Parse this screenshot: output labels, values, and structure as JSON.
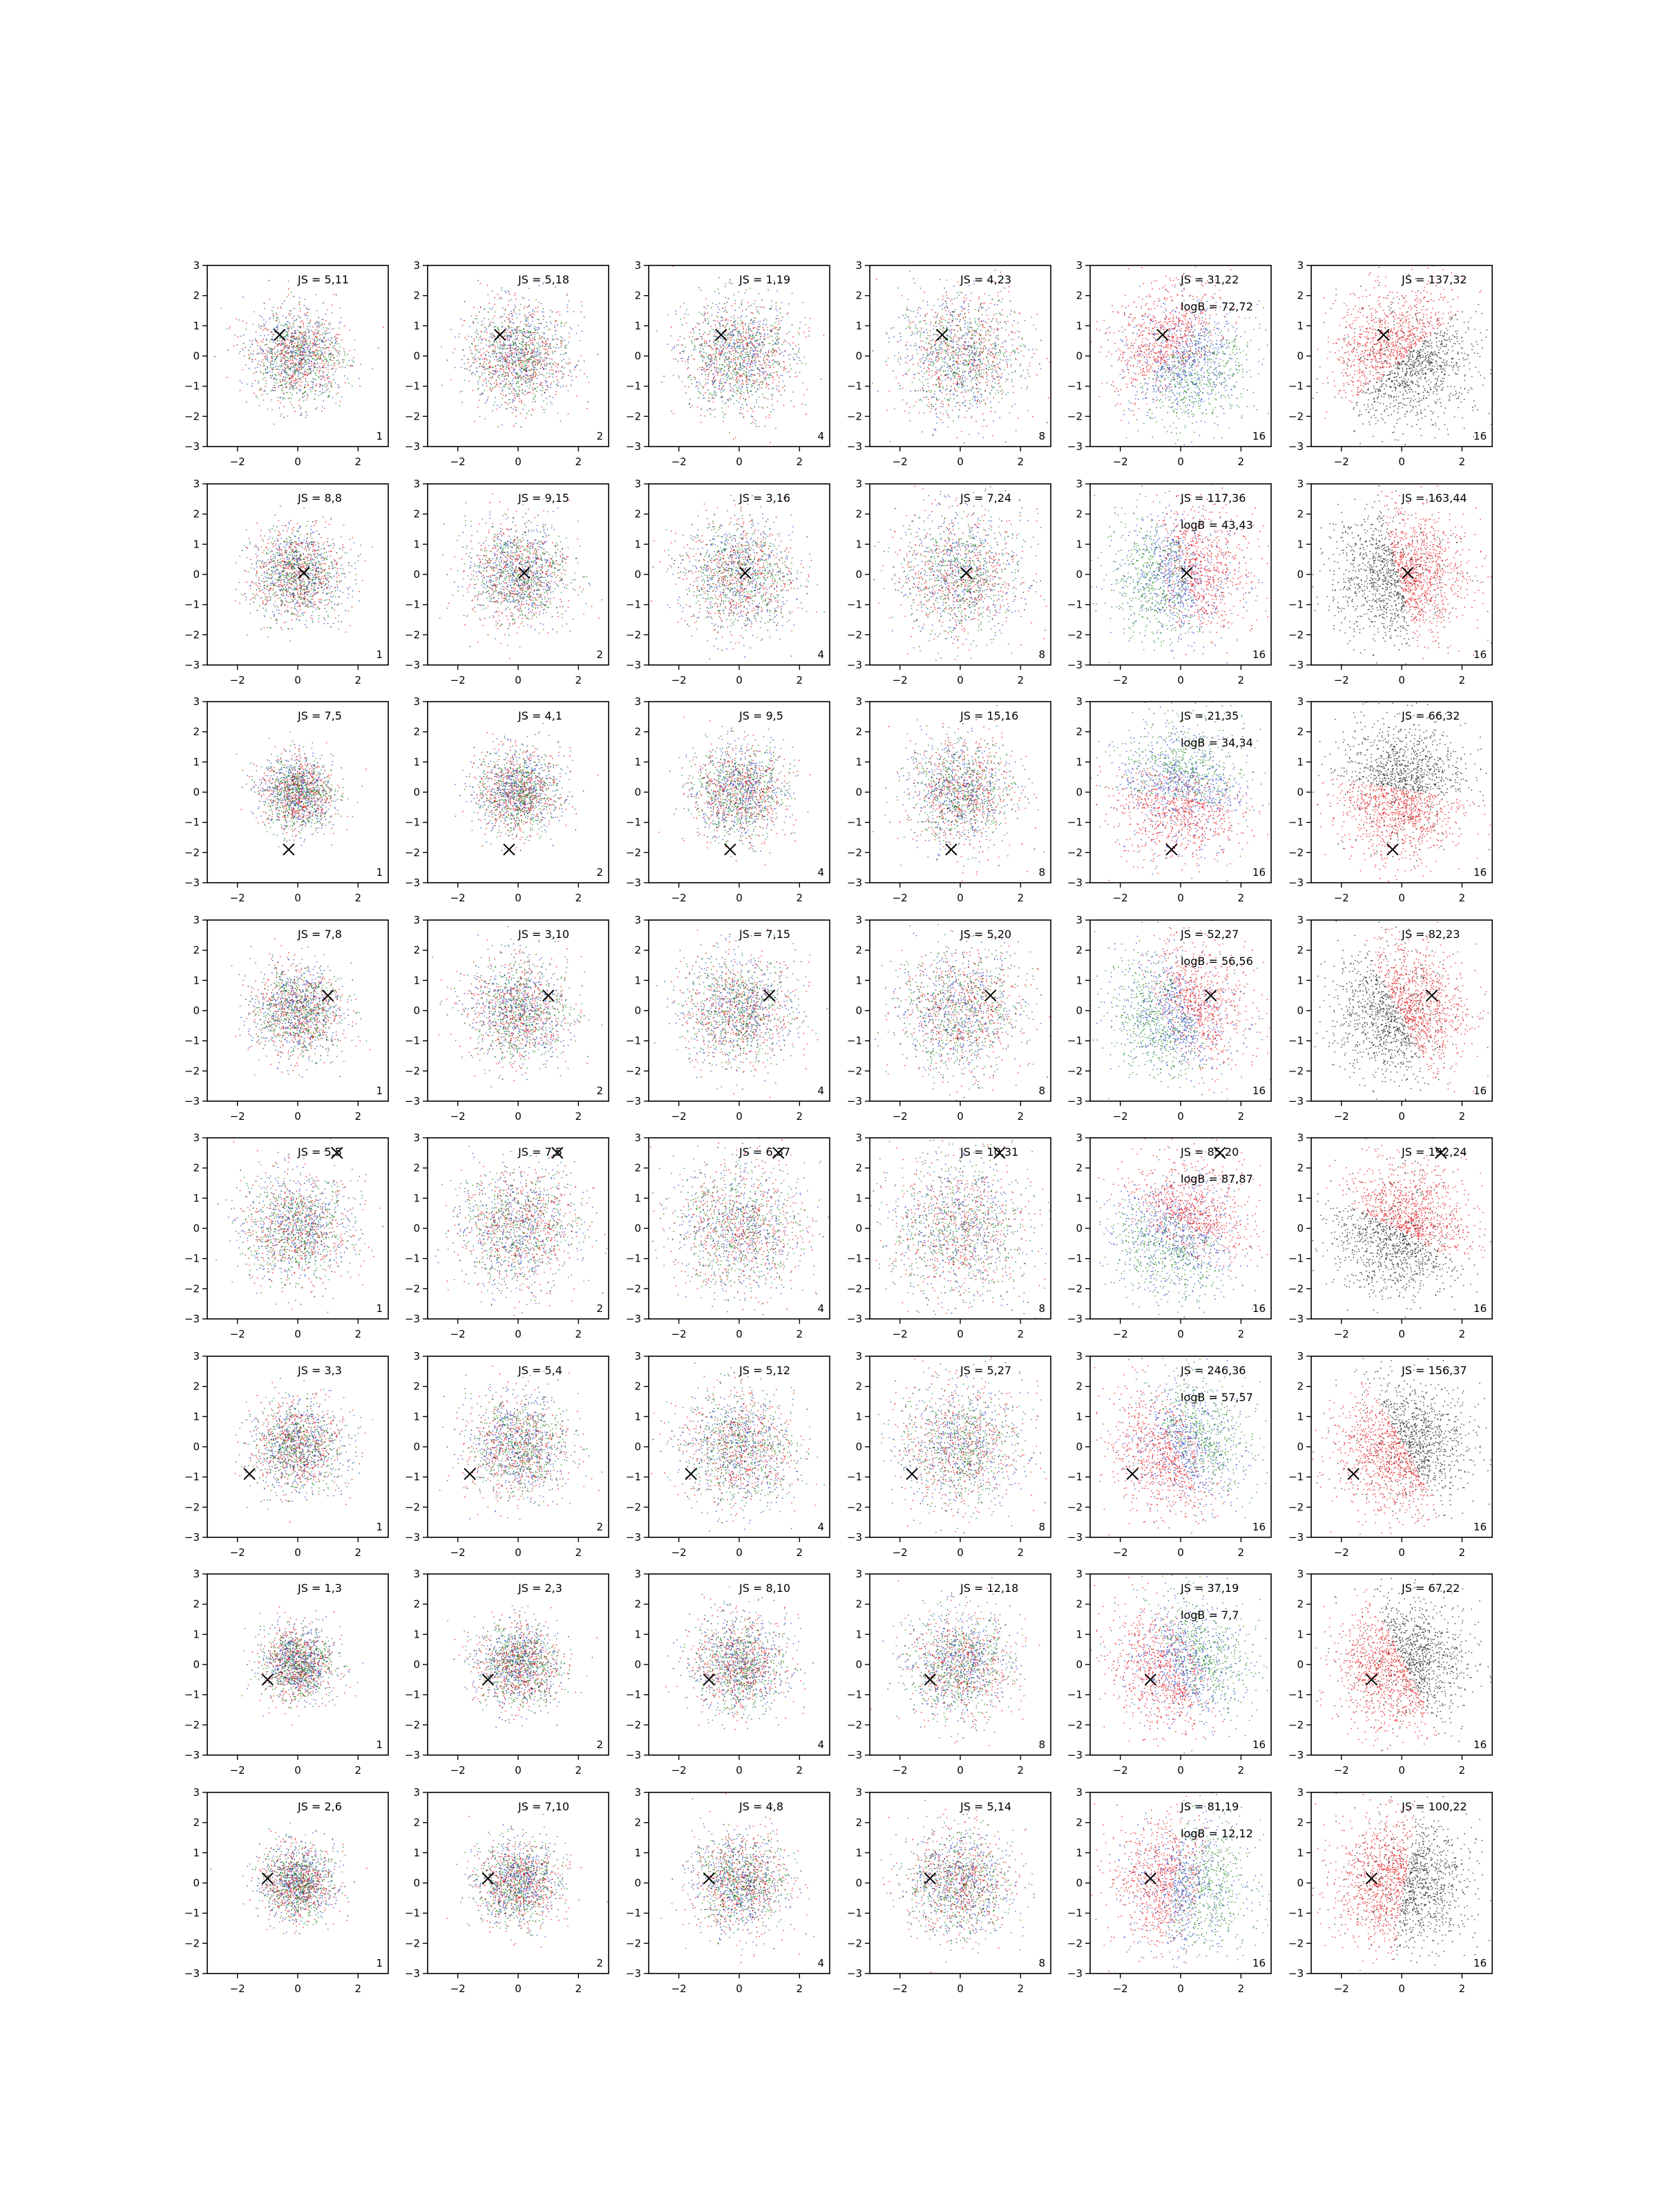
{
  "figure": {
    "rows": 8,
    "cols": 6,
    "subplot_type": "scatter",
    "xlim": [
      -3,
      3
    ],
    "ylim": [
      -3,
      3
    ],
    "x_ticks": [
      "−2",
      "0",
      "2"
    ],
    "y_ticks": [
      "3",
      "2",
      "1",
      "0",
      "−1",
      "−2",
      "−3"
    ],
    "column_corner_labels": [
      "1",
      "2",
      "4",
      "8",
      "16",
      "16"
    ],
    "colors": {
      "red": "#e8141a",
      "green": "#1c8a1c",
      "blue": "#2b45c8",
      "black": "#222222",
      "axis": "#000000",
      "marker": "#000000"
    }
  },
  "chart_data": [
    {
      "row": 1,
      "col": 1,
      "type": "scatter",
      "annotation_js": "JS = 5,11",
      "annotation_logb": "",
      "corner_label": "1",
      "marker": {
        "x": -0.6,
        "y": 0.7
      },
      "style": "mixed"
    },
    {
      "row": 1,
      "col": 2,
      "type": "scatter",
      "annotation_js": "JS = 5,18",
      "annotation_logb": "",
      "corner_label": "2",
      "marker": {
        "x": -0.6,
        "y": 0.7
      },
      "style": "mixed"
    },
    {
      "row": 1,
      "col": 3,
      "type": "scatter",
      "annotation_js": "JS = 1,19",
      "annotation_logb": "",
      "corner_label": "4",
      "marker": {
        "x": -0.6,
        "y": 0.7
      },
      "style": "mixed"
    },
    {
      "row": 1,
      "col": 4,
      "type": "scatter",
      "annotation_js": "JS = 4,23",
      "annotation_logb": "",
      "corner_label": "8",
      "marker": {
        "x": -0.6,
        "y": 0.7
      },
      "style": "mixed"
    },
    {
      "row": 1,
      "col": 5,
      "type": "scatter",
      "annotation_js": "JS = 31,22",
      "annotation_logb": "logB = 72,72",
      "corner_label": "16",
      "marker": {
        "x": -0.6,
        "y": 0.7
      },
      "style": "split"
    },
    {
      "row": 1,
      "col": 6,
      "type": "scatter",
      "annotation_js": "JS = 137,32",
      "annotation_logb": "",
      "corner_label": "16",
      "marker": {
        "x": -0.6,
        "y": 0.7
      },
      "style": "binary"
    },
    {
      "row": 2,
      "col": 1,
      "type": "scatter",
      "annotation_js": "JS = 8,8",
      "annotation_logb": "",
      "corner_label": "1",
      "marker": {
        "x": 0.2,
        "y": 0.05
      },
      "style": "mixed"
    },
    {
      "row": 2,
      "col": 2,
      "type": "scatter",
      "annotation_js": "JS = 9,15",
      "annotation_logb": "",
      "corner_label": "2",
      "marker": {
        "x": 0.2,
        "y": 0.05
      },
      "style": "mixed"
    },
    {
      "row": 2,
      "col": 3,
      "type": "scatter",
      "annotation_js": "JS = 3,16",
      "annotation_logb": "",
      "corner_label": "4",
      "marker": {
        "x": 0.2,
        "y": 0.05
      },
      "style": "mixed"
    },
    {
      "row": 2,
      "col": 4,
      "type": "scatter",
      "annotation_js": "JS = 7,24",
      "annotation_logb": "",
      "corner_label": "8",
      "marker": {
        "x": 0.2,
        "y": 0.05
      },
      "style": "mixed"
    },
    {
      "row": 2,
      "col": 5,
      "type": "scatter",
      "annotation_js": "JS = 117,36",
      "annotation_logb": "logB = 43,43",
      "corner_label": "16",
      "marker": {
        "x": 0.2,
        "y": 0.05
      },
      "style": "split"
    },
    {
      "row": 2,
      "col": 6,
      "type": "scatter",
      "annotation_js": "JS = 163,44",
      "annotation_logb": "",
      "corner_label": "16",
      "marker": {
        "x": 0.2,
        "y": 0.05
      },
      "style": "binary"
    },
    {
      "row": 3,
      "col": 1,
      "type": "scatter",
      "annotation_js": "JS = 7,5",
      "annotation_logb": "",
      "corner_label": "1",
      "marker": {
        "x": -0.3,
        "y": -1.9
      },
      "style": "mixed"
    },
    {
      "row": 3,
      "col": 2,
      "type": "scatter",
      "annotation_js": "JS = 4,1",
      "annotation_logb": "",
      "corner_label": "2",
      "marker": {
        "x": -0.3,
        "y": -1.9
      },
      "style": "mixed"
    },
    {
      "row": 3,
      "col": 3,
      "type": "scatter",
      "annotation_js": "JS = 9,5",
      "annotation_logb": "",
      "corner_label": "4",
      "marker": {
        "x": -0.3,
        "y": -1.9
      },
      "style": "mixed"
    },
    {
      "row": 3,
      "col": 4,
      "type": "scatter",
      "annotation_js": "JS = 15,16",
      "annotation_logb": "",
      "corner_label": "8",
      "marker": {
        "x": -0.3,
        "y": -1.9
      },
      "style": "mixed"
    },
    {
      "row": 3,
      "col": 5,
      "type": "scatter",
      "annotation_js": "JS = 21,35",
      "annotation_logb": "logB = 34,34",
      "corner_label": "16",
      "marker": {
        "x": -0.3,
        "y": -1.9
      },
      "style": "split"
    },
    {
      "row": 3,
      "col": 6,
      "type": "scatter",
      "annotation_js": "JS = 66,32",
      "annotation_logb": "",
      "corner_label": "16",
      "marker": {
        "x": -0.3,
        "y": -1.9
      },
      "style": "binary"
    },
    {
      "row": 4,
      "col": 1,
      "type": "scatter",
      "annotation_js": "JS = 7,8",
      "annotation_logb": "",
      "corner_label": "1",
      "marker": {
        "x": 1.0,
        "y": 0.5
      },
      "style": "mixed"
    },
    {
      "row": 4,
      "col": 2,
      "type": "scatter",
      "annotation_js": "JS = 3,10",
      "annotation_logb": "",
      "corner_label": "2",
      "marker": {
        "x": 1.0,
        "y": 0.5
      },
      "style": "mixed"
    },
    {
      "row": 4,
      "col": 3,
      "type": "scatter",
      "annotation_js": "JS = 7,15",
      "annotation_logb": "",
      "corner_label": "4",
      "marker": {
        "x": 1.0,
        "y": 0.5
      },
      "style": "mixed"
    },
    {
      "row": 4,
      "col": 4,
      "type": "scatter",
      "annotation_js": "JS = 5,20",
      "annotation_logb": "",
      "corner_label": "8",
      "marker": {
        "x": 1.0,
        "y": 0.5
      },
      "style": "mixed"
    },
    {
      "row": 4,
      "col": 5,
      "type": "scatter",
      "annotation_js": "JS = 52,27",
      "annotation_logb": "logB = 56,56",
      "corner_label": "16",
      "marker": {
        "x": 1.0,
        "y": 0.5
      },
      "style": "split"
    },
    {
      "row": 4,
      "col": 6,
      "type": "scatter",
      "annotation_js": "JS = 82,23",
      "annotation_logb": "",
      "corner_label": "16",
      "marker": {
        "x": 1.0,
        "y": 0.5
      },
      "style": "binary"
    },
    {
      "row": 5,
      "col": 1,
      "type": "scatter",
      "annotation_js": "JS = 5,5",
      "annotation_logb": "",
      "corner_label": "1",
      "marker": {
        "x": 1.3,
        "y": 2.5
      },
      "style": "mixed"
    },
    {
      "row": 5,
      "col": 2,
      "type": "scatter",
      "annotation_js": "JS = 7,5",
      "annotation_logb": "",
      "corner_label": "2",
      "marker": {
        "x": 1.3,
        "y": 2.5
      },
      "style": "mixed"
    },
    {
      "row": 5,
      "col": 3,
      "type": "scatter",
      "annotation_js": "JS = 6,37",
      "annotation_logb": "",
      "corner_label": "4",
      "marker": {
        "x": 1.3,
        "y": 2.5
      },
      "style": "mixed"
    },
    {
      "row": 5,
      "col": 4,
      "type": "scatter",
      "annotation_js": "JS = 10,31",
      "annotation_logb": "",
      "corner_label": "8",
      "marker": {
        "x": 1.3,
        "y": 2.5
      },
      "style": "mixed"
    },
    {
      "row": 5,
      "col": 5,
      "type": "scatter",
      "annotation_js": "JS = 85,20",
      "annotation_logb": "logB = 87,87",
      "corner_label": "16",
      "marker": {
        "x": 1.3,
        "y": 2.5
      },
      "style": "split"
    },
    {
      "row": 5,
      "col": 6,
      "type": "scatter",
      "annotation_js": "JS = 192,24",
      "annotation_logb": "",
      "corner_label": "16",
      "marker": {
        "x": 1.3,
        "y": 2.5
      },
      "style": "binary"
    },
    {
      "row": 6,
      "col": 1,
      "type": "scatter",
      "annotation_js": "JS = 3,3",
      "annotation_logb": "",
      "corner_label": "1",
      "marker": {
        "x": -1.6,
        "y": -0.9
      },
      "style": "mixed"
    },
    {
      "row": 6,
      "col": 2,
      "type": "scatter",
      "annotation_js": "JS = 5,4",
      "annotation_logb": "",
      "corner_label": "2",
      "marker": {
        "x": -1.6,
        "y": -0.9
      },
      "style": "mixed"
    },
    {
      "row": 6,
      "col": 3,
      "type": "scatter",
      "annotation_js": "JS = 5,12",
      "annotation_logb": "",
      "corner_label": "4",
      "marker": {
        "x": -1.6,
        "y": -0.9
      },
      "style": "mixed"
    },
    {
      "row": 6,
      "col": 4,
      "type": "scatter",
      "annotation_js": "JS = 5,27",
      "annotation_logb": "",
      "corner_label": "8",
      "marker": {
        "x": -1.6,
        "y": -0.9
      },
      "style": "mixed"
    },
    {
      "row": 6,
      "col": 5,
      "type": "scatter",
      "annotation_js": "JS = 246,36",
      "annotation_logb": "logB = 57,57",
      "corner_label": "16",
      "marker": {
        "x": -1.6,
        "y": -0.9
      },
      "style": "split"
    },
    {
      "row": 6,
      "col": 6,
      "type": "scatter",
      "annotation_js": "JS = 156,37",
      "annotation_logb": "",
      "corner_label": "16",
      "marker": {
        "x": -1.6,
        "y": -0.9
      },
      "style": "binary"
    },
    {
      "row": 7,
      "col": 1,
      "type": "scatter",
      "annotation_js": "JS = 1,3",
      "annotation_logb": "",
      "corner_label": "1",
      "marker": {
        "x": -1.0,
        "y": -0.5
      },
      "style": "mixed"
    },
    {
      "row": 7,
      "col": 2,
      "type": "scatter",
      "annotation_js": "JS = 2,3",
      "annotation_logb": "",
      "corner_label": "2",
      "marker": {
        "x": -1.0,
        "y": -0.5
      },
      "style": "mixed"
    },
    {
      "row": 7,
      "col": 3,
      "type": "scatter",
      "annotation_js": "JS = 8,10",
      "annotation_logb": "",
      "corner_label": "4",
      "marker": {
        "x": -1.0,
        "y": -0.5
      },
      "style": "mixed"
    },
    {
      "row": 7,
      "col": 4,
      "type": "scatter",
      "annotation_js": "JS = 12,18",
      "annotation_logb": "",
      "corner_label": "8",
      "marker": {
        "x": -1.0,
        "y": -0.5
      },
      "style": "mixed"
    },
    {
      "row": 7,
      "col": 5,
      "type": "scatter",
      "annotation_js": "JS = 37,19",
      "annotation_logb": "logB = 7,7",
      "corner_label": "16",
      "marker": {
        "x": -1.0,
        "y": -0.5
      },
      "style": "split"
    },
    {
      "row": 7,
      "col": 6,
      "type": "scatter",
      "annotation_js": "JS = 67,22",
      "annotation_logb": "",
      "corner_label": "16",
      "marker": {
        "x": -1.0,
        "y": -0.5
      },
      "style": "binary"
    },
    {
      "row": 8,
      "col": 1,
      "type": "scatter",
      "annotation_js": "JS = 2,6",
      "annotation_logb": "",
      "corner_label": "1",
      "marker": {
        "x": -1.0,
        "y": 0.15
      },
      "style": "mixed"
    },
    {
      "row": 8,
      "col": 2,
      "type": "scatter",
      "annotation_js": "JS = 7,10",
      "annotation_logb": "",
      "corner_label": "2",
      "marker": {
        "x": -1.0,
        "y": 0.15
      },
      "style": "mixed"
    },
    {
      "row": 8,
      "col": 3,
      "type": "scatter",
      "annotation_js": "JS = 4,8",
      "annotation_logb": "",
      "corner_label": "4",
      "marker": {
        "x": -1.0,
        "y": 0.15
      },
      "style": "mixed"
    },
    {
      "row": 8,
      "col": 4,
      "type": "scatter",
      "annotation_js": "JS = 5,14",
      "annotation_logb": "",
      "corner_label": "8",
      "marker": {
        "x": -1.0,
        "y": 0.15
      },
      "style": "mixed"
    },
    {
      "row": 8,
      "col": 5,
      "type": "scatter",
      "annotation_js": "JS = 81,19",
      "annotation_logb": "logB = 12,12",
      "corner_label": "16",
      "marker": {
        "x": -1.0,
        "y": 0.15
      },
      "style": "split"
    },
    {
      "row": 8,
      "col": 6,
      "type": "scatter",
      "annotation_js": "JS = 100,22",
      "annotation_logb": "",
      "corner_label": "16",
      "marker": {
        "x": -1.0,
        "y": 0.15
      },
      "style": "binary"
    }
  ]
}
